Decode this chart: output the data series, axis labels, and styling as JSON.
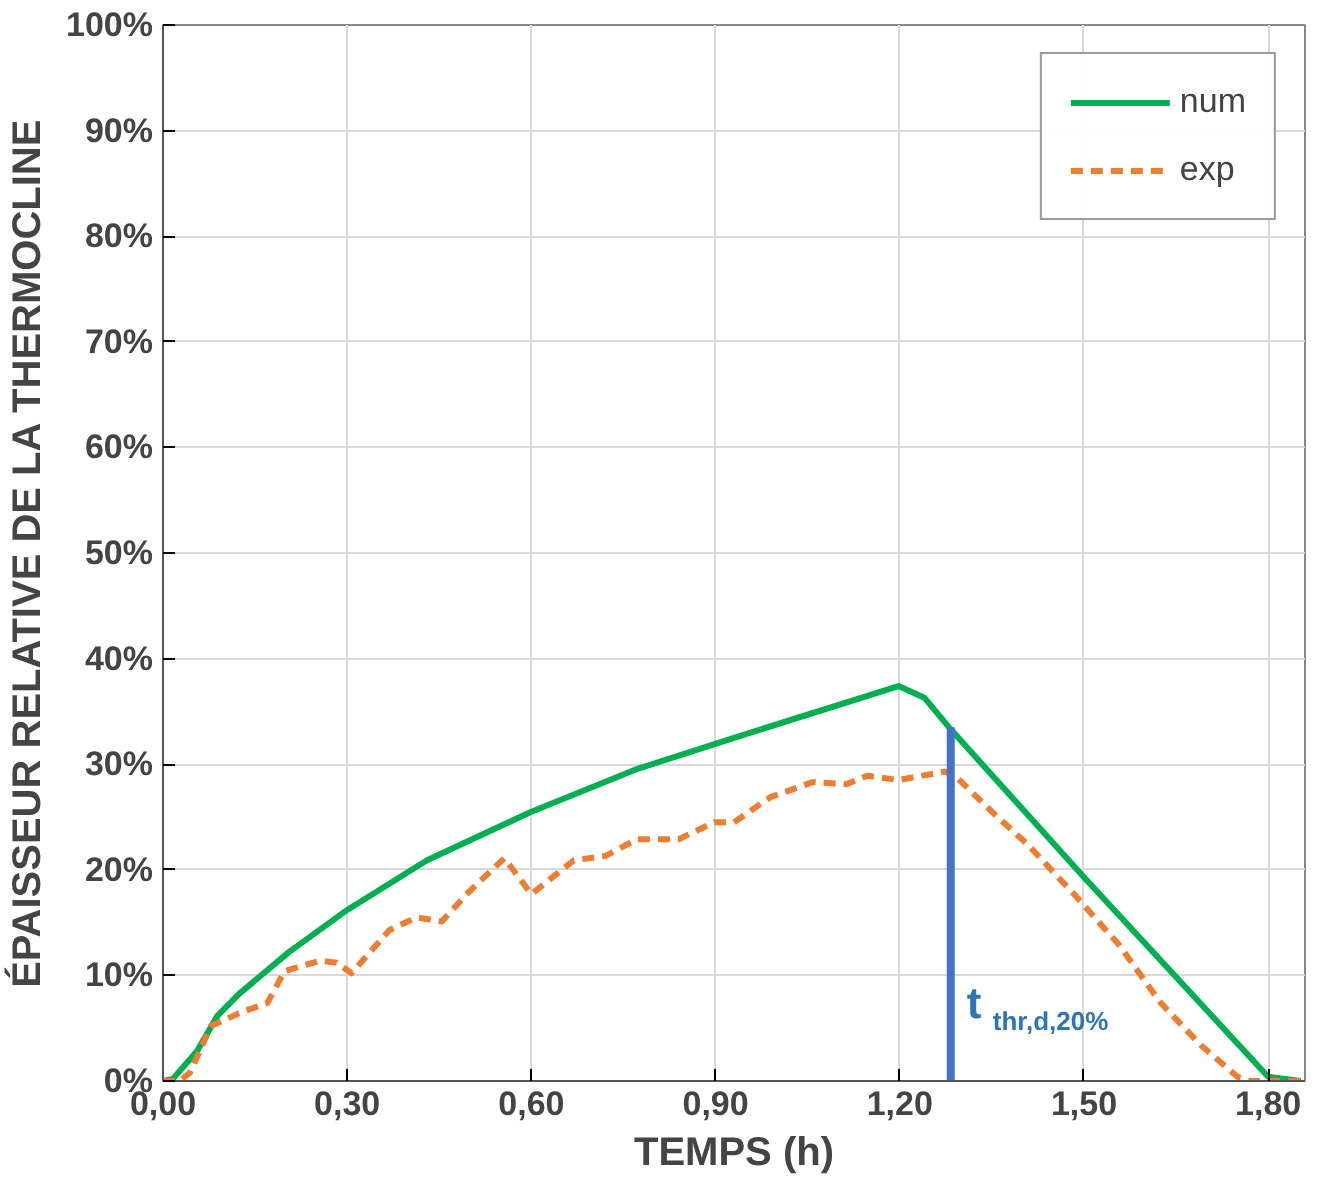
{
  "chart_data": {
    "type": "line",
    "xlabel": "TEMPS (h)",
    "ylabel": "ÉPAISSEUR RELATIVE DE LA THERMOCLINE",
    "xlim": [
      0,
      1.86
    ],
    "ylim": [
      0,
      100
    ],
    "xticks": [
      {
        "value": 0,
        "label": "0,00"
      },
      {
        "value": 0.3,
        "label": "0,30"
      },
      {
        "value": 0.6,
        "label": "0,60"
      },
      {
        "value": 0.9,
        "label": "0,90"
      },
      {
        "value": 1.2,
        "label": "1,20"
      },
      {
        "value": 1.5,
        "label": "1,50"
      },
      {
        "value": 1.8,
        "label": "1,80"
      }
    ],
    "yticks": [
      {
        "value": 0,
        "label": "0%"
      },
      {
        "value": 10,
        "label": "10%"
      },
      {
        "value": 20,
        "label": "20%"
      },
      {
        "value": 30,
        "label": "30%"
      },
      {
        "value": 40,
        "label": "40%"
      },
      {
        "value": 50,
        "label": "50%"
      },
      {
        "value": 60,
        "label": "60%"
      },
      {
        "value": 70,
        "label": "70%"
      },
      {
        "value": 80,
        "label": "80%"
      },
      {
        "value": 90,
        "label": "90%"
      },
      {
        "value": 100,
        "label": "100%"
      }
    ],
    "grid": true,
    "legend": "top right",
    "series": [
      {
        "name": "num",
        "color": "#00b050",
        "line_style": "solid",
        "x": [
          0,
          0.016,
          0.055,
          0.089,
          0.123,
          0.205,
          0.3,
          0.43,
          0.6,
          0.77,
          0.93,
          1.198,
          1.24,
          1.283,
          1.5,
          1.8,
          1.853
        ],
        "values": [
          0,
          0.2,
          2.8,
          6.2,
          8.2,
          12.2,
          16.2,
          20.9,
          25.5,
          29.5,
          32.5,
          37.4,
          36.3,
          33.3,
          19.3,
          0.4,
          0
        ]
      },
      {
        "name": "exp",
        "color": "#ed7d31",
        "line_style": "dashed",
        "x": [
          0,
          0.027,
          0.044,
          0.078,
          0.123,
          0.17,
          0.198,
          0.256,
          0.283,
          0.307,
          0.369,
          0.413,
          0.454,
          0.498,
          0.556,
          0.6,
          0.669,
          0.72,
          0.772,
          0.84,
          0.898,
          0.93,
          0.99,
          1.058,
          1.113,
          1.147,
          1.198,
          1.273,
          1.29,
          1.35,
          1.41,
          1.49,
          1.557,
          1.625,
          1.69,
          1.75,
          1.77,
          1.853
        ],
        "values": [
          0,
          0,
          0.8,
          5.2,
          6.4,
          7.4,
          10.4,
          11.4,
          11.2,
          10.2,
          14.3,
          15.5,
          15.1,
          17.9,
          21.1,
          17.7,
          20.9,
          21.3,
          22.9,
          22.9,
          24.5,
          24.5,
          26.9,
          28.3,
          28.1,
          28.9,
          28.5,
          29.3,
          28.9,
          25.5,
          22.3,
          17.3,
          12.9,
          7.4,
          3.4,
          0.4,
          0,
          0
        ]
      },
      {
        "color": "#4472c4",
        "line_style": "solid",
        "x": [
          1.283,
          1.283
        ],
        "values": [
          0,
          33.5
        ]
      }
    ],
    "annotations": [
      {
        "text": "t$_{thr,d,20%}$",
        "x": 1.283,
        "y": 5
      }
    ]
  }
}
